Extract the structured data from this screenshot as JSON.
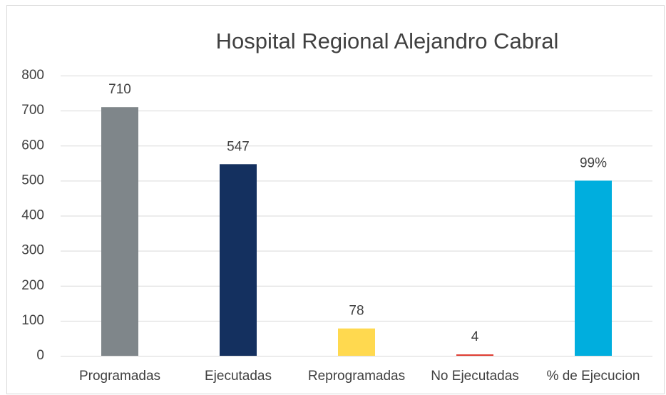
{
  "chart_data": {
    "type": "bar",
    "title": "Hospital Regional Alejandro Cabral",
    "categories": [
      "Programadas",
      "Ejecutadas",
      "Reprogramadas",
      "No Ejecutadas",
      "% de Ejecucion"
    ],
    "values": [
      710,
      547,
      78,
      4,
      500
    ],
    "colors": [
      "#7f868a",
      "#14305f",
      "#ffd94f",
      "#e03c31",
      "#00aede"
    ],
    "annotations": [
      {
        "text": "99%",
        "category": "% de Ejecucion"
      }
    ],
    "ylim": [
      0,
      800
    ],
    "yticks": [
      0,
      100,
      200,
      300,
      400,
      500,
      600,
      700,
      800
    ],
    "grid": true
  }
}
